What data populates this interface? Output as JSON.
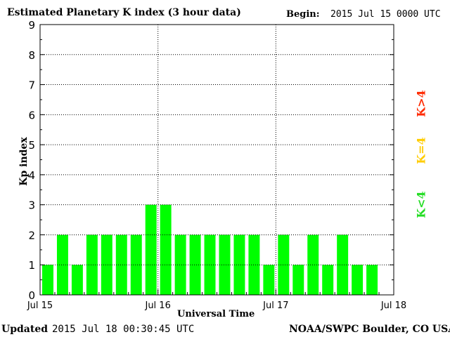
{
  "header": {
    "title": "Estimated Planetary K index (3 hour data)",
    "begin_label": "Begin:",
    "begin_value": "2015 Jul 15 0000 UTC"
  },
  "footer": {
    "updated_label": "Updated",
    "updated_value": "2015 Jul 18 00:30:45 UTC",
    "credit": "NOAA/SWPC Boulder, CO USA"
  },
  "legend": [
    {
      "label": "K>4",
      "color": "#ff2a00"
    },
    {
      "label": "K=4",
      "color": "#ffcc00"
    },
    {
      "label": "K<4",
      "color": "#22dd22"
    }
  ],
  "chart_data": {
    "type": "bar",
    "title": "Estimated Planetary K index (3 hour data)",
    "xlabel": "Universal Time",
    "ylabel": "Kp index",
    "ylim": [
      0,
      9
    ],
    "yticks": [
      0,
      1,
      2,
      3,
      4,
      5,
      6,
      7,
      8,
      9
    ],
    "xticks": [
      "Jul 15",
      "Jul 16",
      "Jul 17",
      "Jul 18"
    ],
    "grid": true,
    "bar_color": "#00ff00",
    "series": [
      {
        "values": [
          1,
          2,
          1,
          2,
          2,
          2,
          2,
          3,
          3,
          2,
          2,
          2,
          2,
          2,
          2,
          1,
          2,
          1,
          2,
          1,
          2,
          1,
          1
        ]
      }
    ]
  }
}
